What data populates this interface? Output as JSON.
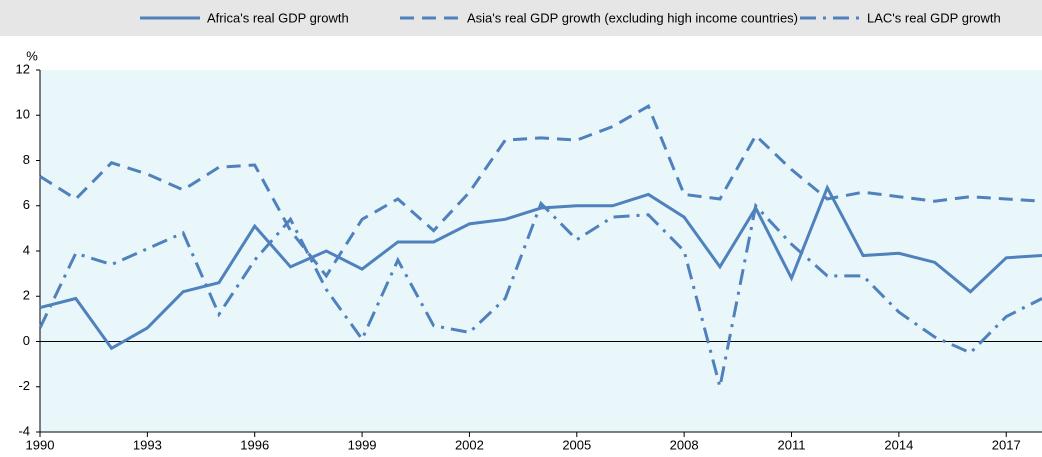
{
  "chart_data": {
    "type": "line",
    "y_label": "%",
    "x": [
      1990,
      1991,
      1992,
      1993,
      1994,
      1995,
      1996,
      1997,
      1998,
      1999,
      2000,
      2001,
      2002,
      2003,
      2004,
      2005,
      2006,
      2007,
      2008,
      2009,
      2010,
      2011,
      2012,
      2013,
      2014,
      2015,
      2016,
      2017,
      2018
    ],
    "series": [
      {
        "name": "Africa's real GDP growth",
        "color": "#4f81bd",
        "style": "solid",
        "values": [
          1.5,
          1.9,
          -0.3,
          0.6,
          2.2,
          2.6,
          5.1,
          3.3,
          4.0,
          3.2,
          4.4,
          4.4,
          5.2,
          5.4,
          5.9,
          6.0,
          6.0,
          6.5,
          5.5,
          3.3,
          5.9,
          2.8,
          6.8,
          3.8,
          3.9,
          3.5,
          2.2,
          3.7,
          3.8
        ]
      },
      {
        "name": "Asia's real GDP growth (excluding high income countries)",
        "color": "#4f81bd",
        "style": "dashed",
        "values": [
          7.3,
          6.3,
          7.9,
          7.4,
          6.7,
          7.7,
          7.8,
          4.9,
          2.9,
          5.4,
          6.3,
          4.9,
          6.6,
          8.9,
          9.0,
          8.9,
          9.5,
          10.4,
          6.5,
          6.3,
          9.1,
          7.6,
          6.3,
          6.6,
          6.4,
          6.2,
          6.4,
          6.3,
          6.2
        ]
      },
      {
        "name": "LAC's real GDP growth",
        "color": "#4f81bd",
        "style": "dashdot",
        "values": [
          0.6,
          3.9,
          3.4,
          4.1,
          4.8,
          1.2,
          3.6,
          5.4,
          2.3,
          0.1,
          3.6,
          0.7,
          0.4,
          1.9,
          6.1,
          4.5,
          5.5,
          5.6,
          4.0,
          -2.0,
          6.0,
          4.3,
          2.9,
          2.9,
          1.3,
          0.2,
          -0.5,
          1.1,
          1.9
        ]
      }
    ],
    "xlim": [
      1990,
      2018
    ],
    "xticks": [
      1990,
      1993,
      1996,
      1999,
      2002,
      2005,
      2008,
      2011,
      2014,
      2017
    ],
    "ylim": [
      -4,
      12
    ],
    "yticks": [
      -4,
      -2,
      0,
      2,
      4,
      6,
      8,
      10,
      12
    ],
    "plot_background": "#eaf7fa"
  }
}
